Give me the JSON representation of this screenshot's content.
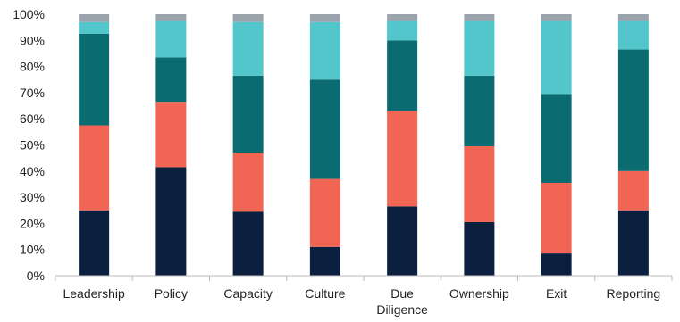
{
  "chart_data": {
    "type": "bar",
    "stacked": true,
    "categories": [
      "Leadership",
      "Policy",
      "Capacity",
      "Culture",
      "Due\nDiligence",
      "Ownership",
      "Exit",
      "Reporting"
    ],
    "series": [
      {
        "color": "#0b1f3f",
        "values": [
          25,
          41.5,
          24.5,
          11,
          26.5,
          20.5,
          8.5,
          25
        ]
      },
      {
        "color": "#f06554",
        "values": [
          32.5,
          25,
          22.5,
          26,
          36.5,
          29,
          27,
          15
        ]
      },
      {
        "color": "#0a6b70",
        "values": [
          35,
          17,
          29.5,
          38,
          27,
          27,
          34,
          46.5
        ]
      },
      {
        "color": "#52c6cb",
        "values": [
          4.5,
          14,
          20.5,
          22,
          7.5,
          21,
          28,
          11
        ]
      },
      {
        "color": "#9ba3ad",
        "values": [
          3,
          2.5,
          3,
          3,
          2.5,
          2.5,
          2.5,
          2.5
        ]
      }
    ],
    "ylim": [
      0,
      100
    ],
    "yticks": [
      "0%",
      "10%",
      "20%",
      "30%",
      "40%",
      "50%",
      "60%",
      "70%",
      "80%",
      "90%",
      "100%"
    ],
    "title": "",
    "xlabel": "",
    "ylabel": "",
    "grid": false,
    "legend": "none"
  }
}
